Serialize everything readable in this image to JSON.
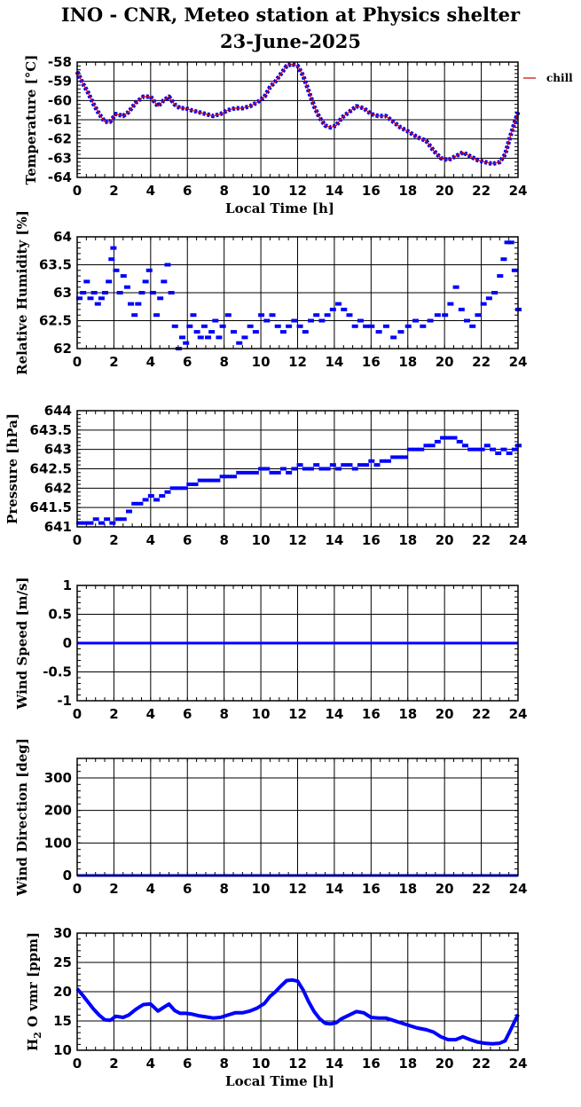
{
  "title_line1": "INO - CNR, Meteo station at Physics shelter",
  "title_line2": "23-June-2025",
  "legend_label": "chill",
  "colors": {
    "data": "#0000ff",
    "overlay": "#cc0000",
    "grid": "#000000"
  },
  "chart_data": [
    {
      "type": "line",
      "ylabel": "Temperature [°C]",
      "xlabel": "Local Time [h]",
      "xlim": [
        0,
        24
      ],
      "ylim": [
        -64,
        -58
      ],
      "xticks": [
        0,
        2,
        4,
        6,
        8,
        10,
        12,
        14,
        16,
        18,
        20,
        22,
        24
      ],
      "yticks": [
        -64,
        -63,
        -62,
        -61,
        -60,
        -59,
        -58
      ],
      "grid": true,
      "legend": "right",
      "series": [
        {
          "name": "chill",
          "style": "line",
          "x": [
            0,
            0.3,
            0.6,
            0.9,
            1.2,
            1.5,
            1.8,
            2.1,
            2.5,
            2.8,
            3.2,
            3.6,
            4.0,
            4.4,
            4.7,
            5.0,
            5.3,
            5.6,
            5.9,
            6.2,
            6.6,
            7.0,
            7.4,
            7.8,
            8.2,
            8.6,
            9.0,
            9.4,
            9.8,
            10.2,
            10.5,
            10.8,
            11.1,
            11.4,
            11.7,
            12.0,
            12.3,
            12.6,
            12.9,
            13.2,
            13.5,
            13.8,
            14.1,
            14.4,
            14.8,
            15.2,
            15.6,
            16.0,
            16.4,
            16.8,
            17.2,
            17.6,
            18.0,
            18.5,
            19.0,
            19.4,
            19.8,
            20.2,
            20.6,
            21.0,
            21.4,
            21.8,
            22.2,
            22.6,
            23.0,
            23.3,
            23.6,
            24.0
          ],
          "y": [
            -58.5,
            -59.1,
            -59.6,
            -60.2,
            -60.7,
            -61.1,
            -61.1,
            -60.7,
            -60.8,
            -60.6,
            -60.1,
            -59.8,
            -59.8,
            -60.3,
            -60.0,
            -59.8,
            -60.2,
            -60.4,
            -60.4,
            -60.5,
            -60.6,
            -60.7,
            -60.8,
            -60.7,
            -60.5,
            -60.4,
            -60.4,
            -60.3,
            -60.1,
            -59.8,
            -59.3,
            -59.0,
            -58.6,
            -58.2,
            -58.1,
            -58.2,
            -58.7,
            -59.5,
            -60.3,
            -60.9,
            -61.3,
            -61.4,
            -61.3,
            -60.9,
            -60.6,
            -60.3,
            -60.4,
            -60.7,
            -60.8,
            -60.8,
            -61.1,
            -61.4,
            -61.6,
            -61.9,
            -62.1,
            -62.6,
            -63.0,
            -63.1,
            -62.9,
            -62.7,
            -62.9,
            -63.1,
            -63.2,
            -63.3,
            -63.2,
            -62.8,
            -61.8,
            -60.6
          ]
        }
      ]
    },
    {
      "type": "scatter",
      "ylabel": "Relative Humidity [%]",
      "xlabel": "",
      "xlim": [
        0,
        24
      ],
      "ylim": [
        62,
        64
      ],
      "xticks": [
        0,
        2,
        4,
        6,
        8,
        10,
        12,
        14,
        16,
        18,
        20,
        22,
        24
      ],
      "yticks": [
        62,
        62.5,
        63,
        63.5,
        64
      ],
      "grid": true,
      "series": [
        {
          "style": "dash",
          "x": [
            0.1,
            0.3,
            0.5,
            0.7,
            0.9,
            1.1,
            1.3,
            1.5,
            1.7,
            1.85,
            1.95,
            2.1,
            2.3,
            2.5,
            2.7,
            2.9,
            3.1,
            3.3,
            3.5,
            3.7,
            3.9,
            4.1,
            4.3,
            4.5,
            4.7,
            4.9,
            5.1,
            5.3,
            5.5,
            5.7,
            5.9,
            6.1,
            6.3,
            6.5,
            6.7,
            6.9,
            7.1,
            7.3,
            7.5,
            7.7,
            7.9,
            8.2,
            8.5,
            8.8,
            9.1,
            9.4,
            9.7,
            10.0,
            10.3,
            10.6,
            10.9,
            11.2,
            11.5,
            11.8,
            12.1,
            12.4,
            12.7,
            13.0,
            13.3,
            13.6,
            13.9,
            14.2,
            14.5,
            14.8,
            15.1,
            15.4,
            15.7,
            16.0,
            16.4,
            16.8,
            17.2,
            17.6,
            18.0,
            18.4,
            18.8,
            19.2,
            19.6,
            20.0,
            20.3,
            20.6,
            20.9,
            21.2,
            21.5,
            21.8,
            22.1,
            22.4,
            22.7,
            23.0,
            23.2,
            23.4,
            23.6,
            23.8,
            24.0
          ],
          "y": [
            62.9,
            63.0,
            63.2,
            62.9,
            63.0,
            62.8,
            62.9,
            63.0,
            63.2,
            63.6,
            63.8,
            63.4,
            63.0,
            63.3,
            63.1,
            62.8,
            62.6,
            62.8,
            63.0,
            63.2,
            63.4,
            63.0,
            62.6,
            62.9,
            63.2,
            63.5,
            63.0,
            62.4,
            62.0,
            62.2,
            62.1,
            62.4,
            62.6,
            62.3,
            62.2,
            62.4,
            62.2,
            62.3,
            62.5,
            62.2,
            62.4,
            62.6,
            62.3,
            62.1,
            62.2,
            62.4,
            62.3,
            62.6,
            62.5,
            62.6,
            62.4,
            62.3,
            62.4,
            62.5,
            62.4,
            62.3,
            62.5,
            62.6,
            62.5,
            62.6,
            62.7,
            62.8,
            62.7,
            62.6,
            62.4,
            62.5,
            62.4,
            62.4,
            62.3,
            62.4,
            62.2,
            62.3,
            62.4,
            62.5,
            62.4,
            62.5,
            62.6,
            62.6,
            62.8,
            63.1,
            62.7,
            62.5,
            62.4,
            62.6,
            62.8,
            62.9,
            63.0,
            63.3,
            63.6,
            63.9,
            63.9,
            63.4,
            62.7
          ]
        }
      ]
    },
    {
      "type": "scatter",
      "ylabel": "Pressure [hPa]",
      "xlabel": "",
      "xlim": [
        0,
        24
      ],
      "ylim": [
        641,
        644
      ],
      "xticks": [
        0,
        2,
        4,
        6,
        8,
        10,
        12,
        14,
        16,
        18,
        20,
        22,
        24
      ],
      "yticks": [
        641,
        641.5,
        642,
        642.5,
        643,
        643.5,
        644
      ],
      "grid": true,
      "series": [
        {
          "style": "dash",
          "x": [
            0.1,
            0.4,
            0.7,
            1.0,
            1.3,
            1.6,
            1.9,
            2.2,
            2.5,
            2.8,
            3.1,
            3.4,
            3.7,
            4.0,
            4.3,
            4.6,
            4.9,
            5.2,
            5.5,
            5.8,
            6.1,
            6.4,
            6.7,
            7.0,
            7.3,
            7.6,
            7.9,
            8.2,
            8.5,
            8.8,
            9.1,
            9.4,
            9.7,
            10.0,
            10.3,
            10.6,
            10.9,
            11.2,
            11.5,
            11.8,
            12.1,
            12.4,
            12.7,
            13.0,
            13.3,
            13.6,
            13.9,
            14.2,
            14.5,
            14.8,
            15.1,
            15.4,
            15.7,
            16.0,
            16.3,
            16.6,
            16.9,
            17.2,
            17.5,
            17.8,
            18.1,
            18.4,
            18.7,
            19.0,
            19.3,
            19.6,
            19.9,
            20.2,
            20.5,
            20.8,
            21.1,
            21.4,
            21.7,
            22.0,
            22.3,
            22.6,
            22.9,
            23.2,
            23.5,
            23.8,
            24.0
          ],
          "y": [
            641.1,
            641.1,
            641.1,
            641.2,
            641.1,
            641.2,
            641.1,
            641.2,
            641.2,
            641.4,
            641.6,
            641.6,
            641.7,
            641.8,
            641.7,
            641.8,
            641.9,
            642.0,
            642.0,
            642.0,
            642.1,
            642.1,
            642.2,
            642.2,
            642.2,
            642.2,
            642.3,
            642.3,
            642.3,
            642.4,
            642.4,
            642.4,
            642.4,
            642.5,
            642.5,
            642.4,
            642.4,
            642.5,
            642.4,
            642.5,
            642.6,
            642.5,
            642.5,
            642.6,
            642.5,
            642.5,
            642.6,
            642.5,
            642.6,
            642.6,
            642.5,
            642.6,
            642.6,
            642.7,
            642.6,
            642.7,
            642.7,
            642.8,
            642.8,
            642.8,
            643.0,
            643.0,
            643.0,
            643.1,
            643.1,
            643.2,
            643.3,
            643.3,
            643.3,
            643.2,
            643.1,
            643.0,
            643.0,
            643.0,
            643.1,
            643.0,
            642.9,
            643.0,
            642.9,
            643.0,
            643.1
          ]
        }
      ]
    },
    {
      "type": "line",
      "ylabel": "Wind Speed [m/s]",
      "xlabel": "",
      "xlim": [
        0,
        24
      ],
      "ylim": [
        -1,
        1
      ],
      "xticks": [
        0,
        2,
        4,
        6,
        8,
        10,
        12,
        14,
        16,
        18,
        20,
        22,
        24
      ],
      "yticks": [
        -1,
        -0.5,
        0,
        0.5,
        1
      ],
      "grid": true,
      "series": [
        {
          "style": "line",
          "x": [
            0,
            24
          ],
          "y": [
            0,
            0
          ]
        }
      ]
    },
    {
      "type": "line",
      "ylabel": "Wind Direction [deg]",
      "xlabel": "",
      "xlim": [
        0,
        24
      ],
      "ylim": [
        0,
        360
      ],
      "xticks": [
        0,
        2,
        4,
        6,
        8,
        10,
        12,
        14,
        16,
        18,
        20,
        22,
        24
      ],
      "yticks": [
        0,
        100,
        200,
        300
      ],
      "grid": true,
      "series": [
        {
          "style": "line",
          "x": [
            0,
            24
          ],
          "y": [
            0,
            0
          ]
        }
      ]
    },
    {
      "type": "line",
      "ylabel": "H2O vmr [ppm]",
      "xlabel": "Local Time [h]",
      "xlim": [
        0,
        24
      ],
      "ylim": [
        10,
        30
      ],
      "xticks": [
        0,
        2,
        4,
        6,
        8,
        10,
        12,
        14,
        16,
        18,
        20,
        22,
        24
      ],
      "yticks": [
        10,
        15,
        20,
        25,
        30
      ],
      "grid": true,
      "series": [
        {
          "style": "thick",
          "x": [
            0,
            0.3,
            0.6,
            0.9,
            1.2,
            1.5,
            1.8,
            2.1,
            2.5,
            2.8,
            3.2,
            3.6,
            4.0,
            4.4,
            4.7,
            5.0,
            5.3,
            5.6,
            5.9,
            6.2,
            6.6,
            7.0,
            7.4,
            7.8,
            8.2,
            8.6,
            9.0,
            9.4,
            9.8,
            10.2,
            10.5,
            10.8,
            11.1,
            11.4,
            11.7,
            12.0,
            12.3,
            12.6,
            12.9,
            13.2,
            13.5,
            13.8,
            14.1,
            14.4,
            14.8,
            15.2,
            15.6,
            16.0,
            16.4,
            16.8,
            17.2,
            17.6,
            18.0,
            18.5,
            19.0,
            19.4,
            19.8,
            20.2,
            20.6,
            21.0,
            21.4,
            21.8,
            22.2,
            22.6,
            23.0,
            23.3,
            23.6,
            24.0
          ],
          "y": [
            20.5,
            19.4,
            18.2,
            17.0,
            16.0,
            15.2,
            15.1,
            15.8,
            15.6,
            16.0,
            17.0,
            17.8,
            17.9,
            16.7,
            17.3,
            17.9,
            16.8,
            16.3,
            16.3,
            16.2,
            15.9,
            15.7,
            15.5,
            15.6,
            16.0,
            16.4,
            16.4,
            16.7,
            17.2,
            18.0,
            19.2,
            20.0,
            21.0,
            21.9,
            22.0,
            21.8,
            20.3,
            18.3,
            16.6,
            15.4,
            14.6,
            14.5,
            14.7,
            15.4,
            16.0,
            16.6,
            16.4,
            15.6,
            15.5,
            15.5,
            15.1,
            14.7,
            14.3,
            13.8,
            13.5,
            13.1,
            12.3,
            11.8,
            11.8,
            12.3,
            11.8,
            11.4,
            11.2,
            11.1,
            11.2,
            11.6,
            13.5,
            16.1
          ]
        }
      ]
    }
  ]
}
